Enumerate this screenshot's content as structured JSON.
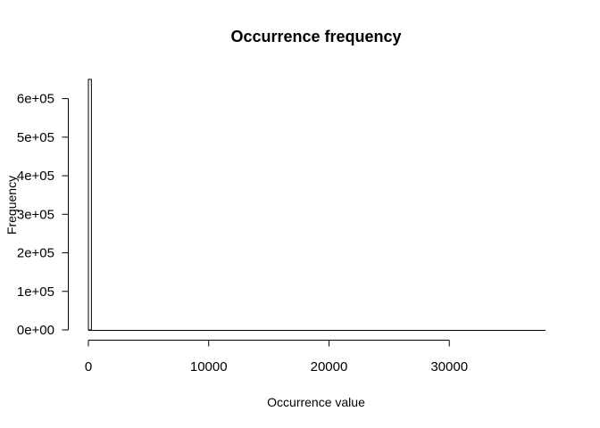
{
  "chart_data": {
    "type": "bar",
    "title": "Occurrence frequency",
    "xlabel": "Occurrence value",
    "ylabel": "Frequency",
    "xlim": [
      0,
      38000
    ],
    "ylim": [
      0,
      650000
    ],
    "x_ticks": [
      0,
      10000,
      20000,
      30000
    ],
    "x_tick_labels": [
      "0",
      "10000",
      "20000",
      "30000"
    ],
    "y_ticks": [
      0,
      100000,
      200000,
      300000,
      400000,
      500000,
      600000
    ],
    "y_tick_labels": [
      "0e+00",
      "1e+05",
      "2e+05",
      "3e+05",
      "4e+05",
      "5e+05",
      "6e+05"
    ],
    "bins": [
      {
        "x0": 0,
        "x1": 250,
        "value": 650000
      }
    ],
    "grid": false,
    "legend": "none"
  }
}
